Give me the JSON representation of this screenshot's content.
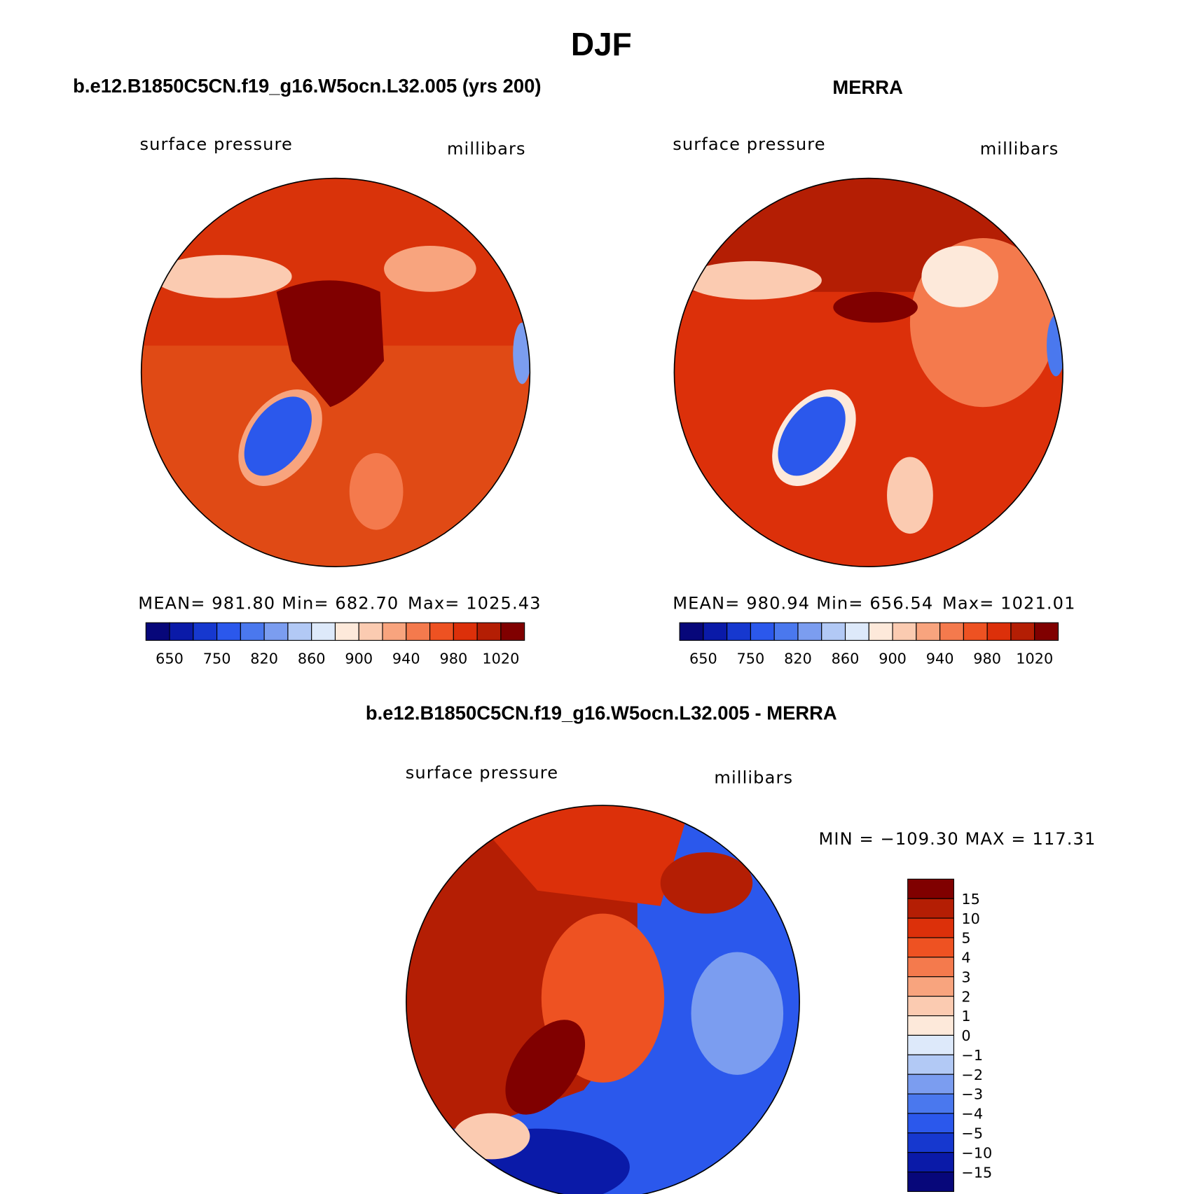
{
  "title": "DJF",
  "panels": [
    {
      "case": "b.e12.B1850C5CN.f19_g16.W5ocn.L32.005 (yrs 200)",
      "variable": "surface pressure",
      "units": "millibars",
      "stats": [
        "MEAN= 981.80",
        "Min= 682.70",
        "Max= 1025.43"
      ]
    },
    {
      "case": "MERRA",
      "variable": "surface pressure",
      "units": "millibars",
      "stats": [
        "MEAN= 980.94",
        "Min= 656.54",
        "Max= 1021.01"
      ]
    }
  ],
  "colorbar": {
    "colors": [
      "#07077a",
      "#0a1aa8",
      "#1638cf",
      "#2b58ec",
      "#4a78ee",
      "#7b9df0",
      "#b2c9f5",
      "#dde9fa",
      "#fde9da",
      "#fbcbb1",
      "#f8a47e",
      "#f47a4d",
      "#ee5222",
      "#dc300a",
      "#b41e04",
      "#800000"
    ],
    "labels": [
      "650",
      "750",
      "820",
      "860",
      "900",
      "940",
      "980",
      "1020"
    ]
  },
  "difference": {
    "case": "b.e12.B1850C5CN.f19_g16.W5ocn.L32.005 - MERRA",
    "variable": "surface pressure",
    "units": "millibars",
    "stats": "MIN = −109.30 MAX = 117.31",
    "colorbar": {
      "colors": [
        "#800000",
        "#b41e04",
        "#dc300a",
        "#ee5222",
        "#f47a4d",
        "#f8a47e",
        "#fbcbb1",
        "#fde9da",
        "#dde9fa",
        "#b2c9f5",
        "#7b9df0",
        "#4a78ee",
        "#2b58ec",
        "#1638cf",
        "#0a1aa8",
        "#07077a"
      ],
      "labels": [
        "15",
        "10",
        "5",
        "4",
        "3",
        "2",
        "1",
        "0",
        "−1",
        "−2",
        "−3",
        "−4",
        "−5",
        "−10",
        "−15"
      ]
    }
  }
}
